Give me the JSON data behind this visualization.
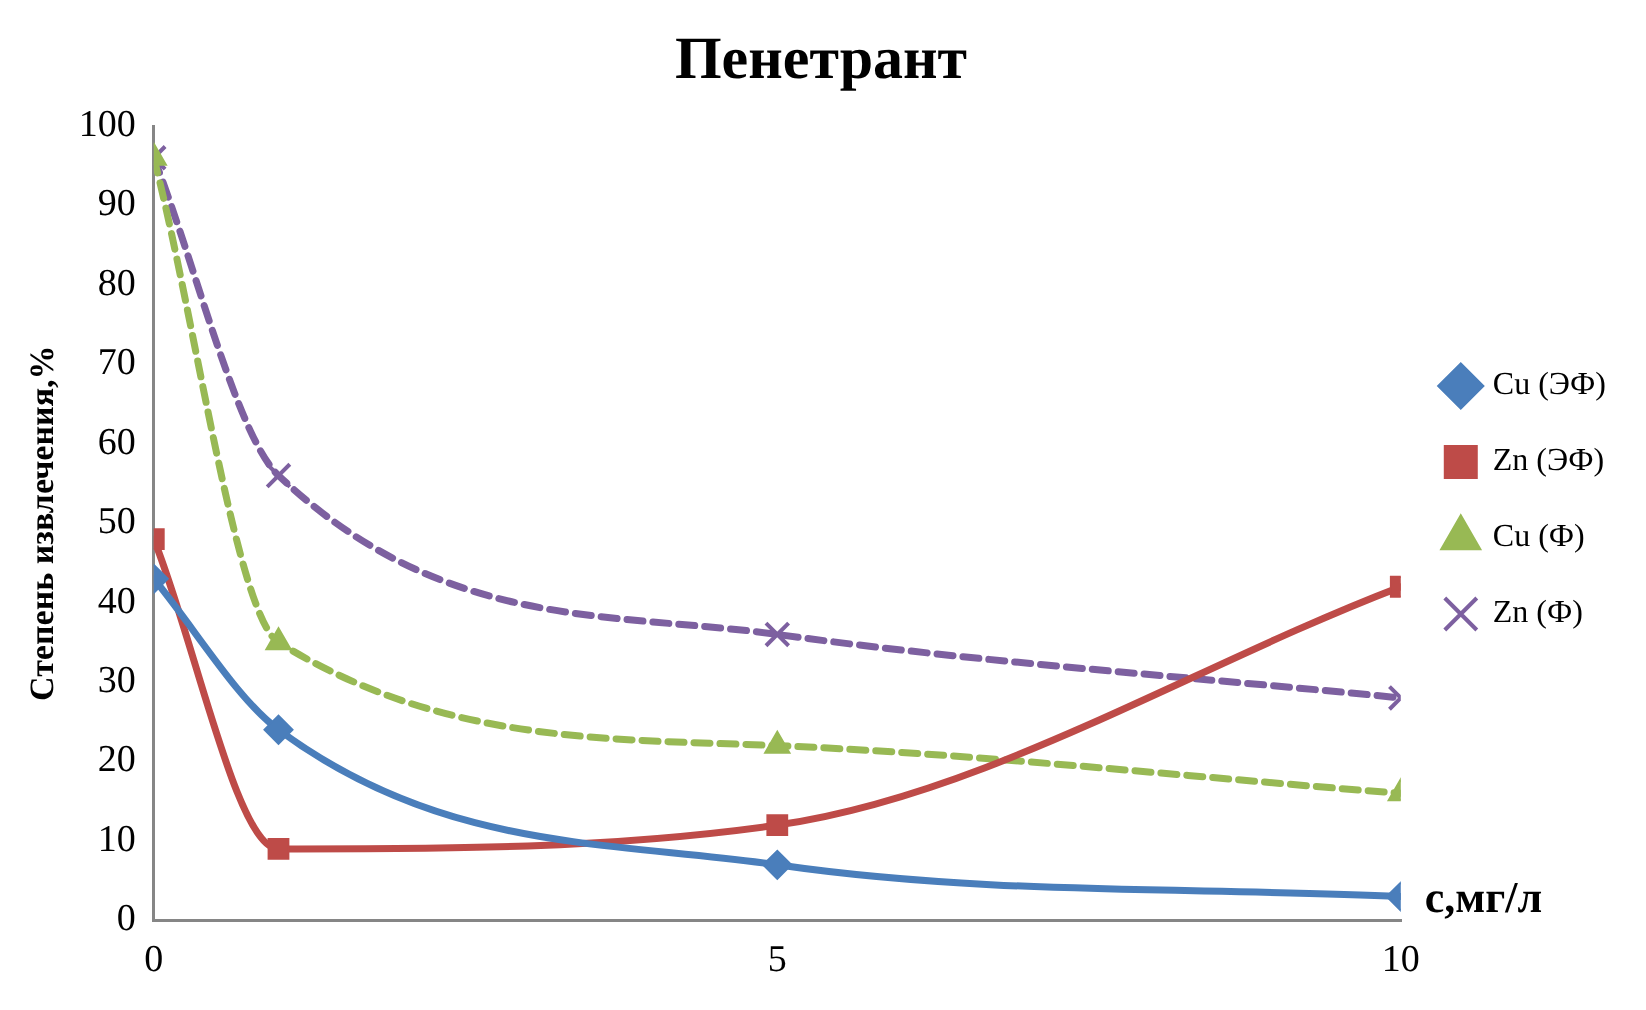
{
  "chart_data": {
    "type": "line",
    "title": "Пенетрант",
    "xlabel": "с,мг/л",
    "ylabel": "Степень извлечения,%",
    "x": [
      0,
      1,
      5,
      10
    ],
    "series": [
      {
        "name": "Cu (ЭФ)",
        "color": "#4a7ebb",
        "values": [
          43,
          24,
          7,
          3
        ],
        "marker": "diamond",
        "line_style": "solid"
      },
      {
        "name": "Zn (ЭФ)",
        "color": "#be4b48",
        "values": [
          48,
          9,
          12,
          42
        ],
        "marker": "square",
        "line_style": "solid"
      },
      {
        "name": "Cu (Ф)",
        "color": "#98b954",
        "values": [
          96,
          35,
          22,
          16
        ],
        "marker": "triangle",
        "line_style": "dashed"
      },
      {
        "name": "Zn (Ф)",
        "color": "#7d60a0",
        "values": [
          96,
          56,
          36,
          28
        ],
        "marker": "cross",
        "line_style": "dashed"
      }
    ],
    "xlim": [
      0,
      10
    ],
    "xticks": [
      0,
      5,
      10
    ],
    "ylim": [
      0,
      100
    ],
    "yticks": [
      0,
      10,
      20,
      30,
      40,
      50,
      60,
      70,
      80,
      90,
      100
    ],
    "grid": false,
    "legend": "right"
  }
}
